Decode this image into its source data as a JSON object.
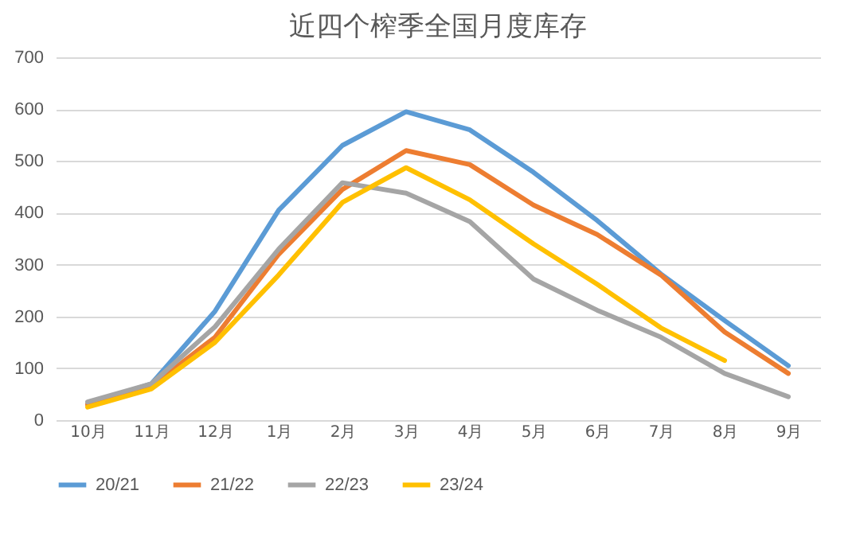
{
  "chart_data": {
    "type": "line",
    "title": "近四个榨季全国月度库存",
    "categories": [
      "10月",
      "11月",
      "12月",
      "1月",
      "2月",
      "3月",
      "4月",
      "5月",
      "6月",
      "7月",
      "8月",
      "9月"
    ],
    "series": [
      {
        "name": "20/21",
        "color": "#5b9bd5",
        "values": [
          30,
          70,
          210,
          405,
          530,
          595,
          560,
          478,
          385,
          282,
          192,
          105
        ]
      },
      {
        "name": "21/22",
        "color": "#ed7d31",
        "values": [
          30,
          65,
          160,
          320,
          445,
          520,
          493,
          415,
          358,
          280,
          170,
          90
        ]
      },
      {
        "name": "22/23",
        "color": "#a5a5a5",
        "values": [
          35,
          70,
          180,
          330,
          458,
          438,
          383,
          272,
          212,
          160,
          90,
          45
        ]
      },
      {
        "name": "23/24",
        "color": "#ffc000",
        "values": [
          25,
          60,
          150,
          280,
          420,
          487,
          425,
          340,
          262,
          178,
          115,
          null
        ]
      }
    ],
    "ylim": [
      0,
      700
    ],
    "yticks": [
      0,
      100,
      200,
      300,
      400,
      500,
      600,
      700
    ],
    "grid": "y",
    "legend": "bottom",
    "marker": "none",
    "line_style": "solid"
  }
}
